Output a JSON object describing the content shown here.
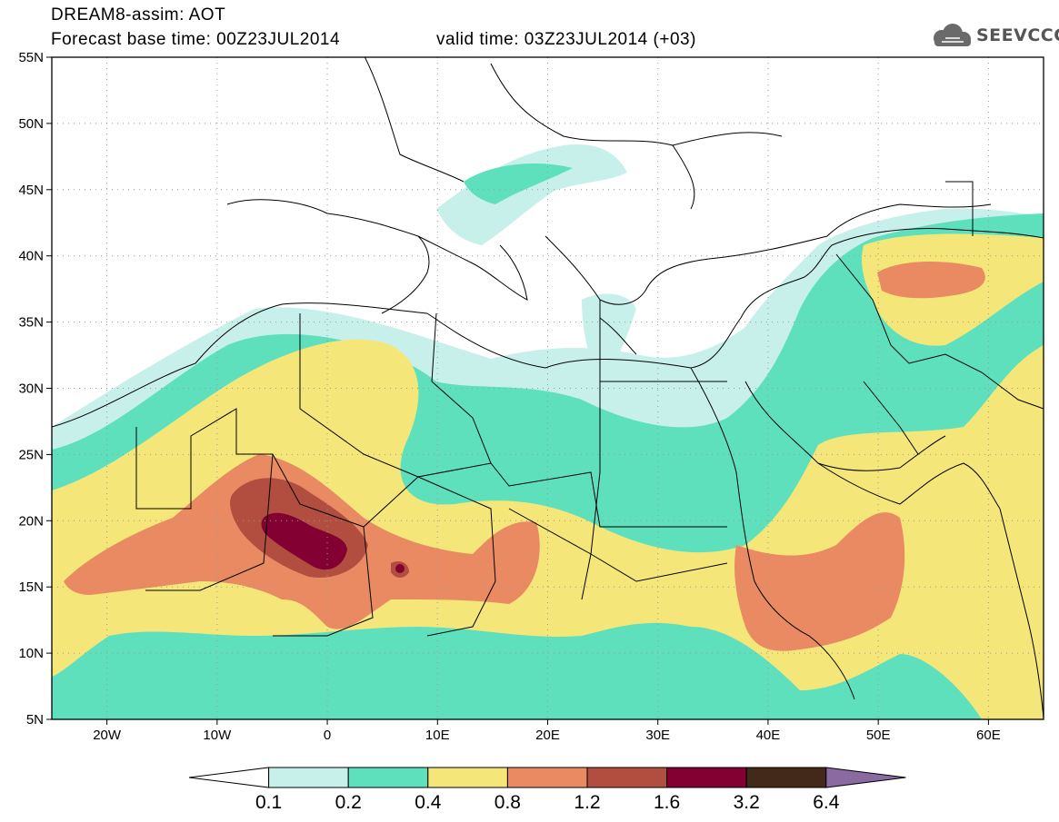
{
  "title": {
    "line1": "DREAM8-assim: AOT",
    "forecast_base": "Forecast base time: 00Z23JUL2014",
    "valid_time": "valid time: 03Z23JUL2014 (+03)"
  },
  "logo": {
    "text": "SEEVCCC",
    "icon": "cloud-icon"
  },
  "map": {
    "lat_labels": [
      "55N",
      "50N",
      "45N",
      "40N",
      "35N",
      "30N",
      "25N",
      "20N",
      "15N",
      "10N",
      "5N"
    ],
    "lon_labels": [
      "20W",
      "10W",
      "0",
      "10E",
      "20E",
      "30E",
      "40E",
      "50E",
      "60E"
    ],
    "extent": {
      "lon_min": -25,
      "lon_max": 65,
      "lat_min": 5,
      "lat_max": 55
    }
  },
  "colorbar": {
    "labels": [
      "0.1",
      "0.2",
      "0.4",
      "0.8",
      "1.2",
      "1.6",
      "3.2",
      "6.4"
    ],
    "colors": [
      "#ffffff",
      "#c8f0ea",
      "#5ee0bd",
      "#f5e67a",
      "#e98a63",
      "#b24e3f",
      "#830032",
      "#43291a",
      "#8a6aa0"
    ]
  }
}
